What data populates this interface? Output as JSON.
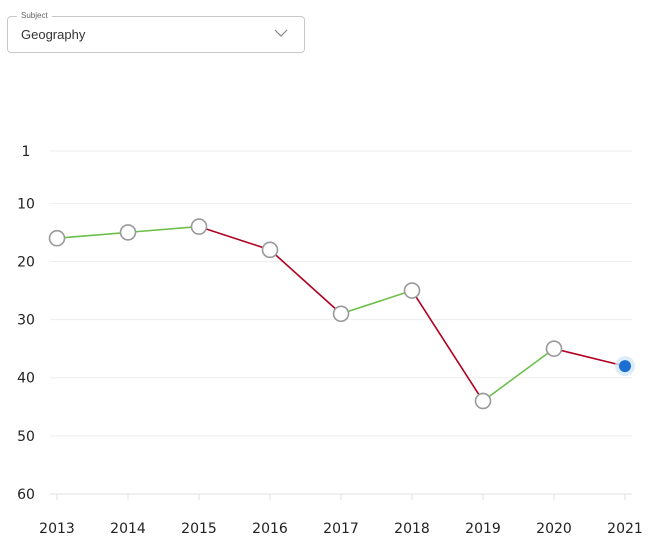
{
  "subject": {
    "legend": "Subject",
    "value": "Geography"
  },
  "colors": {
    "improve": "#6cc04a",
    "decline": "#b00020",
    "gridline": "#eeeeee",
    "point_stroke": "#999999",
    "point_fill": "#ffffff",
    "current_point": "#1a6fd1",
    "current_halo": "#d6e6f7"
  },
  "chart_data": {
    "type": "line",
    "title": "",
    "xlabel": "",
    "ylabel": "",
    "y_reversed": true,
    "ylim": [
      1,
      60
    ],
    "yticks": [
      1,
      10,
      20,
      30,
      40,
      50,
      60
    ],
    "x": [
      "2013",
      "2014",
      "2015",
      "2016",
      "2017",
      "2018",
      "2019",
      "2020",
      "2021"
    ],
    "series": [
      {
        "values": [
          16,
          15,
          14,
          18,
          29,
          25,
          44,
          35,
          38
        ]
      }
    ],
    "segment_colors": "green when the value moves toward 1, red when it moves toward 60",
    "highlighted_point": "2021",
    "grid": true,
    "legend": "none"
  }
}
